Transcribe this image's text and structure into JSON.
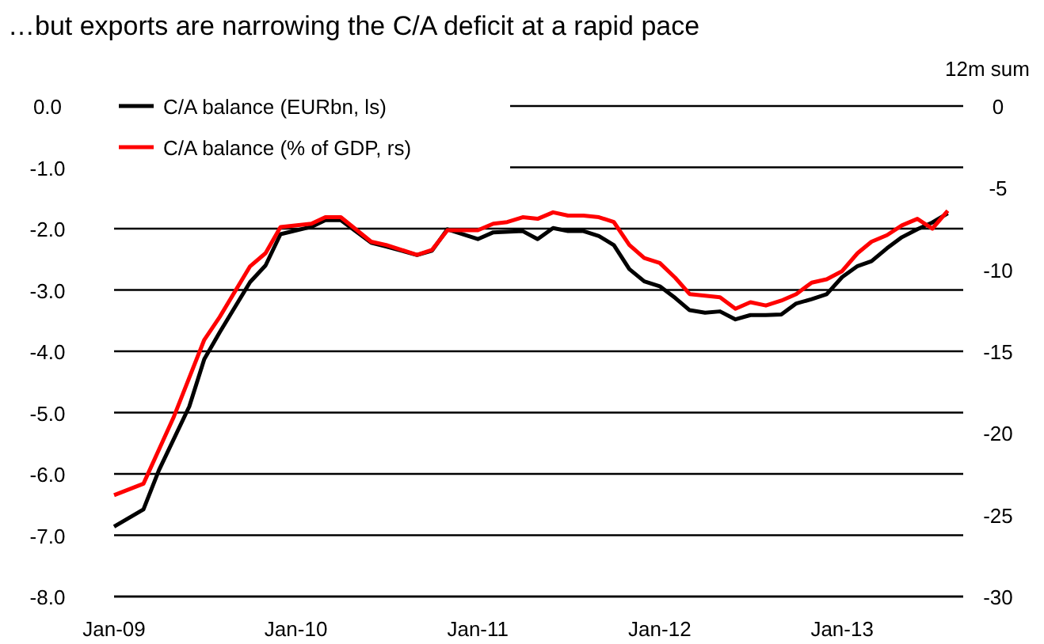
{
  "chart_data": {
    "type": "line",
    "title": "…but exports are narrowing the C/A deficit at a rapid pace",
    "annotations": [
      "12m sum"
    ],
    "xlim": [
      "2009-01",
      "2013-09"
    ],
    "xticks": [
      {
        "value": "2009-01",
        "label": "Jan-09"
      },
      {
        "value": "2010-01",
        "label": "Jan-10"
      },
      {
        "value": "2011-01",
        "label": "Jan-11"
      },
      {
        "value": "2012-01",
        "label": "Jan-12"
      },
      {
        "value": "2013-01",
        "label": "Jan-13"
      }
    ],
    "ylim": [
      -8,
      0
    ],
    "yticks": [
      {
        "value": 0,
        "label": "0.0"
      },
      {
        "value": -1,
        "label": "-1.0"
      },
      {
        "value": -2,
        "label": "-2.0"
      },
      {
        "value": -3,
        "label": "-3.0"
      },
      {
        "value": -4,
        "label": "-4.0"
      },
      {
        "value": -5,
        "label": "-5.0"
      },
      {
        "value": -6,
        "label": "-6.0"
      },
      {
        "value": -7,
        "label": "-7.0"
      },
      {
        "value": -8,
        "label": "-8.0"
      }
    ],
    "y2lim": [
      -30,
      0
    ],
    "y2ticks": [
      0,
      -5,
      -10,
      -15,
      -20,
      -25,
      -30
    ],
    "grid": "y",
    "legend": "top left",
    "line_style": "solid",
    "marker": "none",
    "series": [
      {
        "name": "C/A balance (EURbn, ls)",
        "color": "#000000",
        "x": [
          "2009-01",
          "2009-03",
          "2009-04",
          "2009-06",
          "2009-07",
          "2009-08",
          "2009-10",
          "2009-11",
          "2009-12",
          "2010-02",
          "2010-03",
          "2010-04",
          "2010-06",
          "2010-07",
          "2010-09",
          "2010-10",
          "2010-11",
          "2011-01",
          "2011-02",
          "2011-04",
          "2011-05",
          "2011-06",
          "2011-07",
          "2011-08",
          "2011-09",
          "2011-10",
          "2011-11",
          "2011-12",
          "2012-01",
          "2012-02",
          "2012-03",
          "2012-04",
          "2012-05",
          "2012-06",
          "2012-07",
          "2012-08",
          "2012-09",
          "2012-10",
          "2012-11",
          "2012-12",
          "2013-01",
          "2013-02",
          "2013-03",
          "2013-04",
          "2013-05",
          "2013-06",
          "2013-07",
          "2013-08"
        ],
        "values": [
          -6.86,
          -6.58,
          -5.94,
          -4.9,
          -4.13,
          -3.69,
          -2.87,
          -2.6,
          -2.09,
          -1.97,
          -1.86,
          -1.86,
          -2.23,
          -2.29,
          -2.43,
          -2.36,
          -2.01,
          -2.17,
          -2.06,
          -2.04,
          -2.17,
          -1.99,
          -2.04,
          -2.04,
          -2.12,
          -2.27,
          -2.66,
          -2.86,
          -2.94,
          -3.13,
          -3.33,
          -3.37,
          -3.35,
          -3.48,
          -3.41,
          -3.41,
          -3.4,
          -3.22,
          -3.15,
          -3.07,
          -2.79,
          -2.61,
          -2.53,
          -2.32,
          -2.14,
          -2.01,
          -1.9,
          -1.75
        ]
      },
      {
        "name": "C/A balance (% of GDP, rs)",
        "color": "#ff0000",
        "axis": "y2",
        "x": [
          "2009-01",
          "2009-03",
          "2009-05",
          "2009-07",
          "2009-08",
          "2009-10",
          "2009-11",
          "2009-12",
          "2010-02",
          "2010-03",
          "2010-04",
          "2010-06",
          "2010-07",
          "2010-09",
          "2010-10",
          "2010-11",
          "2011-01",
          "2011-02",
          "2011-03",
          "2011-04",
          "2011-05",
          "2011-06",
          "2011-07",
          "2011-08",
          "2011-09",
          "2011-10",
          "2011-11",
          "2011-12",
          "2012-01",
          "2012-02",
          "2012-03",
          "2012-04",
          "2012-05",
          "2012-06",
          "2012-07",
          "2012-08",
          "2012-09",
          "2012-10",
          "2012-11",
          "2012-12",
          "2013-01",
          "2013-02",
          "2013-03",
          "2013-04",
          "2013-05",
          "2013-06",
          "2013-07",
          "2013-08"
        ],
        "values": [
          -23.8,
          -23.1,
          -19.0,
          -14.3,
          -12.9,
          -9.8,
          -9.0,
          -7.4,
          -7.2,
          -6.8,
          -6.8,
          -8.3,
          -8.5,
          -9.1,
          -8.8,
          -7.6,
          -7.6,
          -7.2,
          -7.1,
          -6.8,
          -6.9,
          -6.5,
          -6.7,
          -6.7,
          -6.8,
          -7.1,
          -8.5,
          -9.3,
          -9.6,
          -10.5,
          -11.5,
          -11.6,
          -11.7,
          -12.4,
          -12.0,
          -12.2,
          -11.9,
          -11.5,
          -10.8,
          -10.6,
          -10.1,
          -9.0,
          -8.3,
          -7.9,
          -7.3,
          -6.9,
          -7.5,
          -6.4
        ]
      }
    ]
  }
}
